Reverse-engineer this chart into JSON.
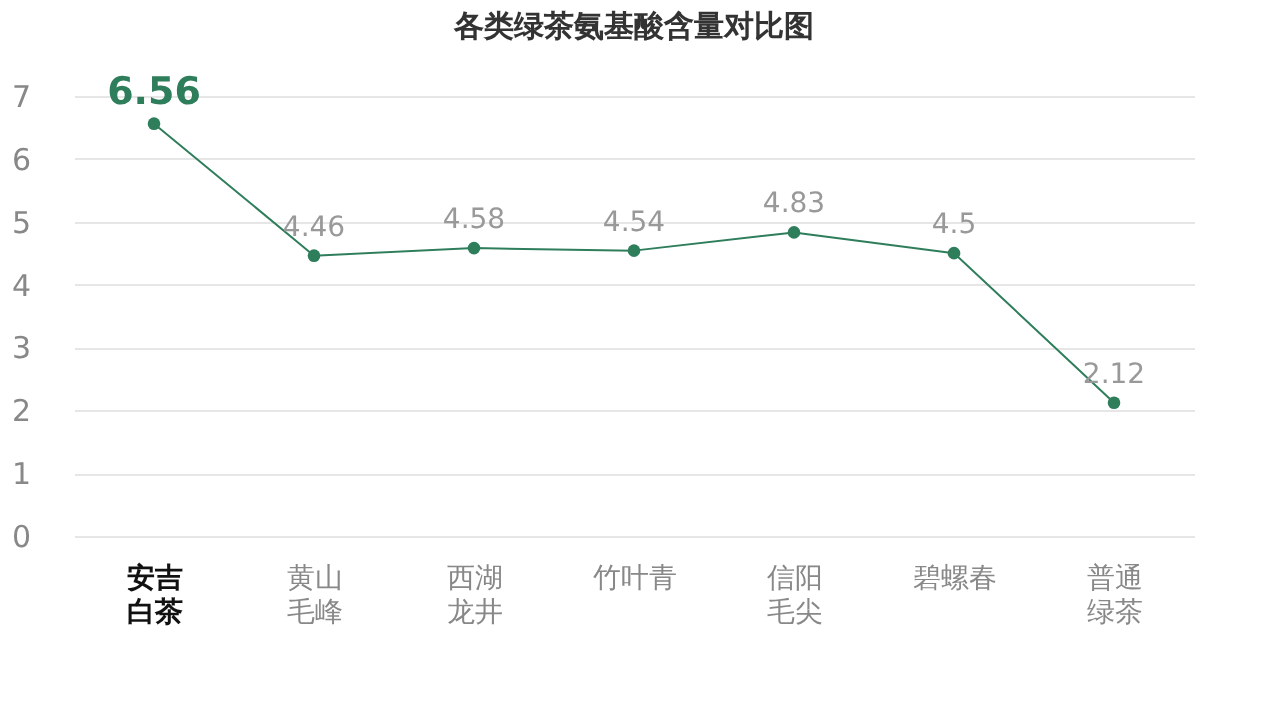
{
  "chart_data": {
    "type": "line",
    "title": "各类绿茶氨基酸含量对比图",
    "categories": [
      "安吉白茶",
      "黄山毛峰",
      "西湖龙井",
      "竹叶青",
      "信阳毛尖",
      "碧螺春",
      "普通绿茶"
    ],
    "series": [
      {
        "color": "#2e7d5b",
        "values": [
          6.56,
          4.46,
          4.58,
          4.54,
          4.83,
          4.5,
          2.12
        ]
      }
    ],
    "ylim": [
      0,
      7
    ],
    "yticks": [
      0,
      1,
      2,
      3,
      4,
      5,
      6,
      7
    ],
    "grid": "y",
    "marker": "circle",
    "line_style": "solid",
    "data_labels": true
  }
}
